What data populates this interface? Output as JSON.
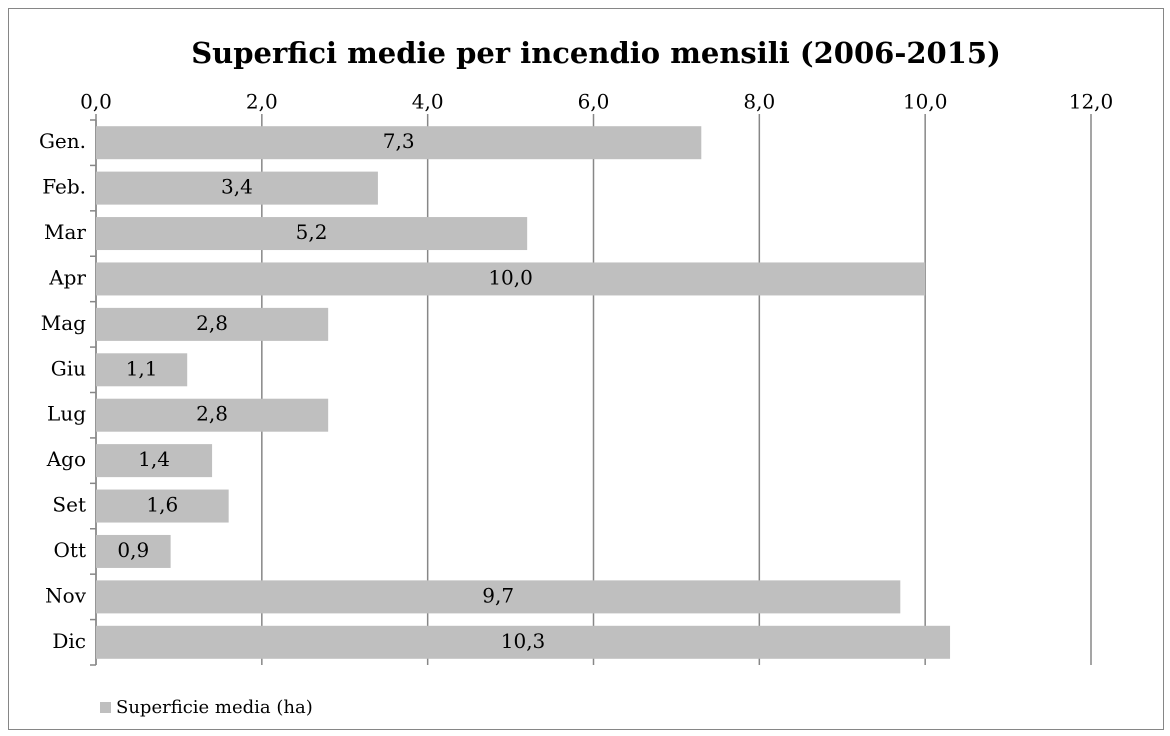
{
  "chart_data": {
    "type": "bar",
    "orientation": "horizontal",
    "title": "Superfici medie per incendio mensili (2006-2015)",
    "categories": [
      "Gen.",
      "Feb.",
      "Mar",
      "Apr",
      "Mag",
      "Giu",
      "Lug",
      "Ago",
      "Set",
      "Ott",
      "Nov",
      "Dic"
    ],
    "series": [
      {
        "name": "Superficie media (ha)",
        "color": "#bfbfbf",
        "values": [
          7.3,
          3.4,
          5.2,
          10.0,
          2.8,
          1.1,
          2.8,
          1.4,
          1.6,
          0.9,
          9.7,
          10.3
        ],
        "value_labels": [
          "7,3",
          "3,4",
          "5,2",
          "10,0",
          "2,8",
          "1,1",
          "2,8",
          "1,4",
          "1,6",
          "0,9",
          "9,7",
          "10,3"
        ]
      }
    ],
    "xlim": [
      0,
      12
    ],
    "xticks": [
      {
        "value": 0,
        "label": "0,0"
      },
      {
        "value": 2,
        "label": "2,0"
      },
      {
        "value": 4,
        "label": "4,0"
      },
      {
        "value": 6,
        "label": "6,0"
      },
      {
        "value": 8,
        "label": "8,0"
      },
      {
        "value": 10,
        "label": "10,0"
      },
      {
        "value": 12,
        "label": "12,0"
      }
    ],
    "grid": true,
    "legend": "bottom-left"
  }
}
